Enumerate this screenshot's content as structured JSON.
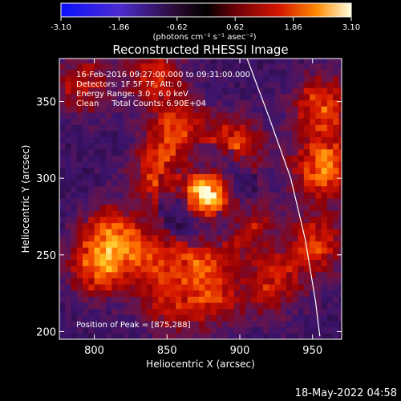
{
  "chart_data": {
    "type": "heatmap",
    "title": "Reconstructed RHESSI Image",
    "xlabel": "Heliocentric X (arcsec)",
    "ylabel": "Heliocentric Y (arcsec)",
    "xlim": [
      776,
      970
    ],
    "ylim": [
      195,
      378
    ],
    "x_ticks": [
      800,
      850,
      900,
      950
    ],
    "y_ticks": [
      200,
      250,
      300,
      350
    ],
    "colorbar": {
      "min": -3.1,
      "max": 3.1,
      "tick_labels": [
        "-3.10",
        "-1.86",
        "-0.62",
        "0.62",
        "1.86",
        "3.10"
      ],
      "unit_label": "(photons cm⁻² s⁻¹ asec⁻²)"
    },
    "annotations": {
      "time_range": "16-Feb-2016 09:27:00.000 to 09:31:00.000",
      "detectors": "Detectors: 1F 5F 7F, Att: 0",
      "energy": "Energy Range: 3.0 - 6.0 keV",
      "method": "Clean     Total Counts: 6.90E+04",
      "peak": "Position of Peak = [875,288]"
    },
    "peak_position": [
      875,
      288
    ],
    "source_blobs": [
      {
        "x": 875,
        "y": 288,
        "intensity": 3.1
      },
      {
        "x": 845,
        "y": 300,
        "intensity": 1.8
      },
      {
        "x": 855,
        "y": 330,
        "intensity": 1.6
      },
      {
        "x": 895,
        "y": 320,
        "intensity": 1.5
      },
      {
        "x": 810,
        "y": 260,
        "intensity": 1.8
      },
      {
        "x": 800,
        "y": 240,
        "intensity": 1.7
      },
      {
        "x": 835,
        "y": 245,
        "intensity": 1.4
      },
      {
        "x": 870,
        "y": 245,
        "intensity": 1.5
      },
      {
        "x": 900,
        "y": 270,
        "intensity": 1.3
      },
      {
        "x": 955,
        "y": 305,
        "intensity": 2.2
      },
      {
        "x": 955,
        "y": 345,
        "intensity": 1.8
      },
      {
        "x": 950,
        "y": 255,
        "intensity": 1.6
      },
      {
        "x": 920,
        "y": 230,
        "intensity": 1.4
      },
      {
        "x": 880,
        "y": 220,
        "intensity": 1.2
      },
      {
        "x": 850,
        "y": 215,
        "intensity": 1.1
      },
      {
        "x": 840,
        "y": 365,
        "intensity": 1.3
      },
      {
        "x": 790,
        "y": 360,
        "intensity": 1.2
      }
    ],
    "limb_curve": [
      [
        905,
        378
      ],
      [
        920,
        340
      ],
      [
        935,
        300
      ],
      [
        945,
        260
      ],
      [
        952,
        220
      ],
      [
        955,
        197
      ]
    ]
  },
  "footer": {
    "timestamp": "18-May-2022 04:58"
  }
}
